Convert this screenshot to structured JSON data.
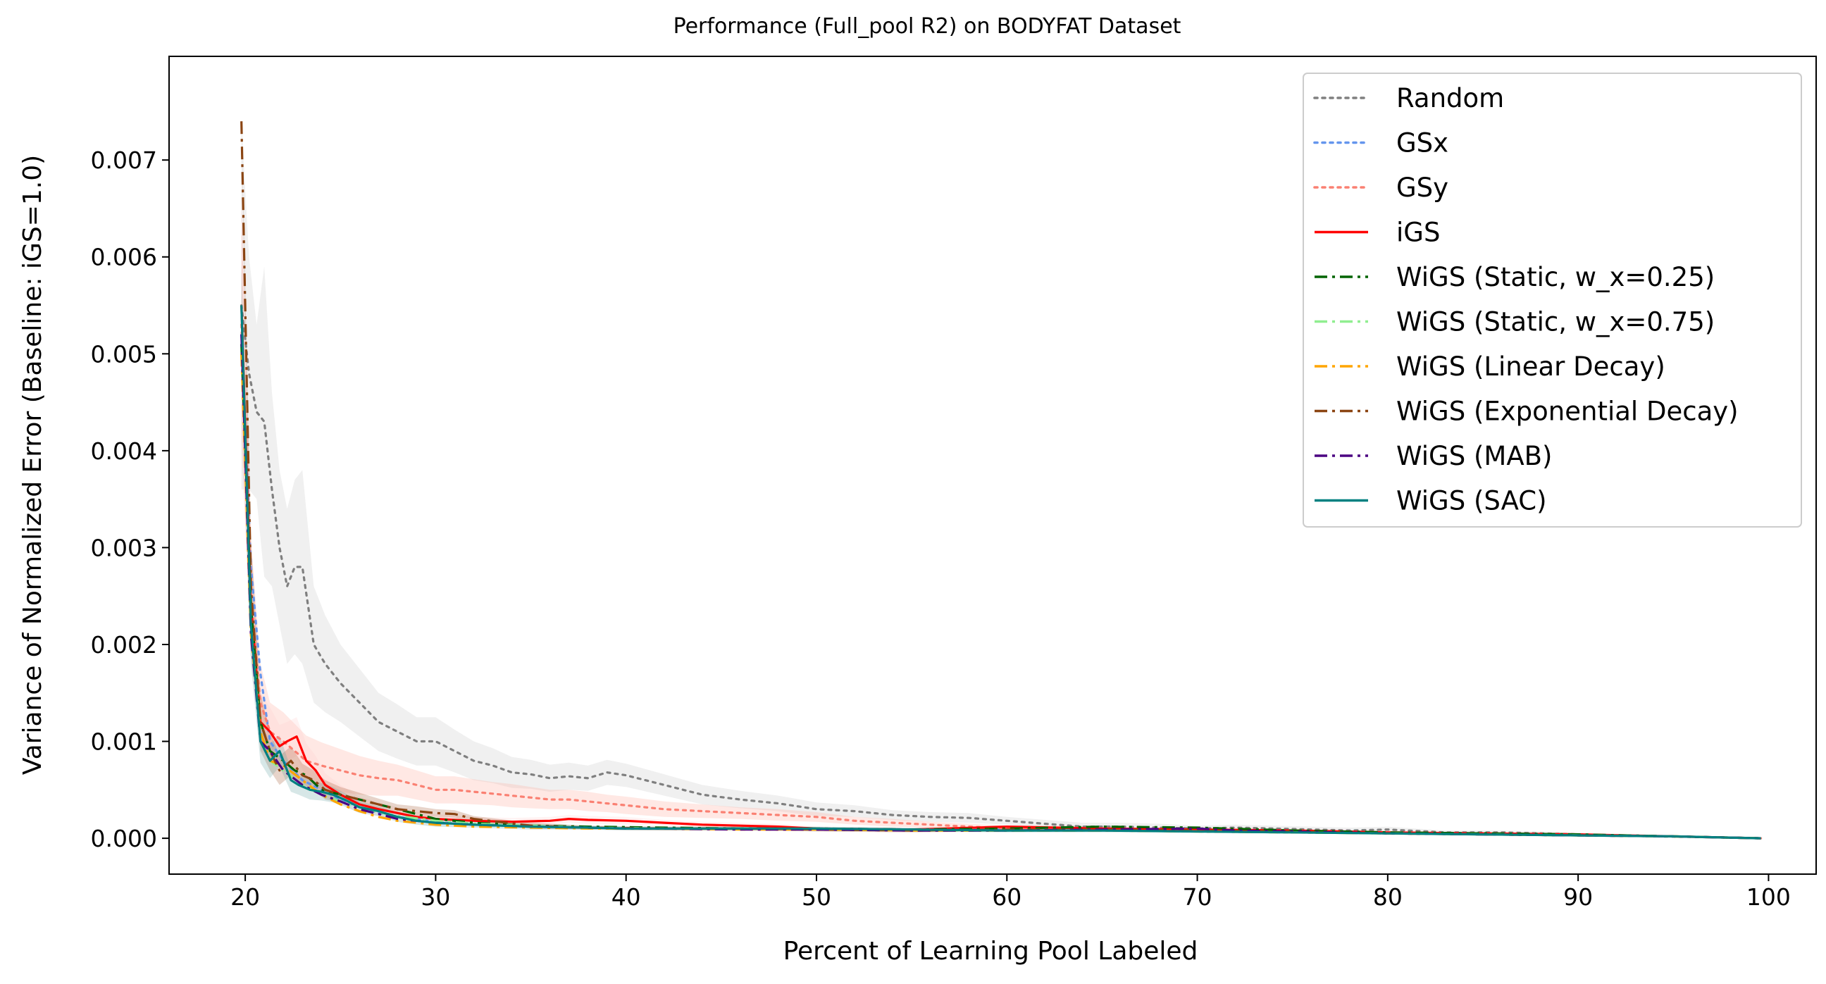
{
  "chart_data": {
    "type": "line",
    "title": "Performance (Full_pool R2) on BODYFAT Dataset",
    "xlabel": "Percent of Learning Pool Labeled",
    "ylabel": "Variance of Normalized Error (Baseline: iGS=1.0)",
    "xlim": [
      16,
      102.5
    ],
    "ylim": [
      -0.00037,
      0.00807
    ],
    "xticks": [
      20,
      30,
      40,
      50,
      60,
      70,
      80,
      90,
      100
    ],
    "xtick_labels": [
      "20",
      "30",
      "40",
      "50",
      "60",
      "70",
      "80",
      "90",
      "100"
    ],
    "yticks": [
      0.0,
      0.001,
      0.002,
      0.003,
      0.004,
      0.005,
      0.006,
      0.007
    ],
    "ytick_labels": [
      "0.000",
      "0.001",
      "0.002",
      "0.003",
      "0.004",
      "0.005",
      "0.006",
      "0.007"
    ],
    "grid": false,
    "legend_position": "top-right",
    "series": [
      {
        "name": "Random",
        "color": "#7f7f7f",
        "style": "dotted",
        "band": true,
        "band_color": "#cccccc",
        "band_opacity": 0.3,
        "x": [
          19.8,
          20.2,
          20.6,
          21.0,
          21.4,
          21.8,
          22.2,
          22.6,
          23.0,
          23.6,
          24.2,
          25.0,
          26.0,
          27.0,
          28.0,
          29.0,
          30.0,
          31.0,
          32.0,
          33.0,
          34.0,
          35.0,
          36.0,
          37.0,
          38.0,
          39.0,
          40.0,
          42.0,
          44.0,
          46.0,
          48.0,
          50.0,
          52.0,
          54.0,
          56.0,
          58.0,
          60.0,
          62.0,
          64.0,
          66.0,
          68.0,
          70.0,
          72.0,
          74.0,
          76.0,
          78.0,
          80.0,
          83.0,
          86.0,
          90.0,
          94.0,
          97.0,
          99.6
        ],
        "y": [
          0.0055,
          0.0048,
          0.0044,
          0.0043,
          0.0036,
          0.003,
          0.0026,
          0.0028,
          0.0028,
          0.002,
          0.0018,
          0.0016,
          0.0014,
          0.0012,
          0.0011,
          0.001,
          0.001,
          0.0009,
          0.0008,
          0.00075,
          0.00068,
          0.00066,
          0.00062,
          0.00064,
          0.00062,
          0.00068,
          0.00065,
          0.00055,
          0.00045,
          0.0004,
          0.00036,
          0.0003,
          0.00028,
          0.00024,
          0.00022,
          0.00021,
          0.00018,
          0.00015,
          0.00012,
          0.00012,
          0.00011,
          0.0001,
          0.00011,
          0.0001,
          9e-05,
          8e-05,
          9e-05,
          6e-05,
          6e-05,
          4e-05,
          2e-05,
          1e-05,
          0.0
        ],
        "spread": [
          0.0019,
          0.0012,
          0.0009,
          0.0016,
          0.001,
          0.0008,
          0.0008,
          0.0009,
          0.001,
          0.0006,
          0.0005,
          0.0004,
          0.00035,
          0.0003,
          0.00028,
          0.00025,
          0.00025,
          0.00022,
          0.0002,
          0.00018,
          0.00016,
          0.00015,
          0.00014,
          0.00014,
          0.00013,
          0.00013,
          0.00012,
          0.00011,
          0.0001,
          9e-05,
          8e-05,
          7e-05,
          6e-05,
          5e-05,
          5e-05,
          5e-05,
          4e-05,
          4e-05,
          4e-05,
          4e-05,
          4e-05,
          3e-05,
          3e-05,
          3e-05,
          3e-05,
          3e-05,
          3e-05,
          2e-05,
          2e-05,
          2e-05,
          1e-05,
          1e-05,
          0.0
        ]
      },
      {
        "name": "GSx",
        "color": "#6495ed",
        "style": "dotted",
        "band": false,
        "x": [
          19.8,
          20.3,
          20.8,
          21.3,
          22.0,
          23.0,
          24.0,
          25.0,
          26.0,
          27.0,
          28.0,
          30.0,
          32.0,
          35.0,
          38.0,
          42.0,
          46.0,
          50.0,
          55.0,
          60.0,
          65.0,
          70.0,
          75.0,
          80.0,
          85.0,
          90.0,
          95.0,
          99.6
        ],
        "y": [
          0.0052,
          0.0028,
          0.0017,
          0.001,
          0.0008,
          0.0006,
          0.0005,
          0.0004,
          0.00032,
          0.00026,
          0.00022,
          0.00017,
          0.00014,
          0.00012,
          0.00011,
          0.0001,
          0.0001,
          0.0001,
          9e-05,
          9e-05,
          8e-05,
          7e-05,
          6e-05,
          5e-05,
          4e-05,
          3e-05,
          2e-05,
          0.0
        ]
      },
      {
        "name": "GSy",
        "color": "#fa8072",
        "style": "dotted",
        "band": true,
        "band_color": "#ffb3a7",
        "band_opacity": 0.3,
        "x": [
          19.8,
          20.3,
          20.8,
          21.3,
          22.0,
          22.6,
          23.2,
          24.0,
          25.0,
          26.0,
          27.0,
          28.0,
          29.0,
          30.0,
          31.0,
          32.0,
          33.0,
          34.0,
          35.0,
          36.0,
          37.0,
          38.0,
          39.0,
          40.0,
          42.0,
          44.0,
          46.0,
          48.0,
          50.0,
          52.0,
          54.0,
          56.0,
          58.0,
          60.0,
          63.0,
          66.0,
          70.0,
          75.0,
          80.0,
          85.0,
          90.0,
          95.0,
          99.6
        ],
        "y": [
          0.0053,
          0.0025,
          0.0014,
          0.0011,
          0.001,
          0.0009,
          0.0008,
          0.00075,
          0.0007,
          0.00065,
          0.00062,
          0.0006,
          0.00055,
          0.0005,
          0.0005,
          0.00048,
          0.00046,
          0.00044,
          0.00042,
          0.0004,
          0.0004,
          0.00038,
          0.00036,
          0.00034,
          0.0003,
          0.00028,
          0.00026,
          0.00024,
          0.00022,
          0.00018,
          0.00016,
          0.00014,
          0.00012,
          0.0001,
          0.0001,
          9e-05,
          8e-05,
          7e-05,
          6e-05,
          4e-05,
          3e-05,
          2e-05,
          0.0
        ],
        "spread": [
          0.0012,
          0.0006,
          0.0004,
          0.0003,
          0.0003,
          0.00028,
          0.00026,
          0.00024,
          0.00022,
          0.0002,
          0.00018,
          0.00016,
          0.00015,
          0.00014,
          0.00014,
          0.00013,
          0.00012,
          0.00012,
          0.00011,
          0.0001,
          0.0001,
          0.0001,
          9e-05,
          9e-05,
          8e-05,
          7e-05,
          6e-05,
          6e-05,
          5e-05,
          4e-05,
          4e-05,
          3e-05,
          3e-05,
          3e-05,
          3e-05,
          2e-05,
          2e-05,
          2e-05,
          2e-05,
          1e-05,
          1e-05,
          1e-05,
          0.0
        ]
      },
      {
        "name": "iGS",
        "color": "#ff0000",
        "style": "solid",
        "band": true,
        "band_color": "#ffcccc",
        "band_opacity": 0.25,
        "x": [
          19.8,
          20.3,
          20.8,
          21.3,
          21.8,
          22.2,
          22.7,
          23.2,
          23.7,
          24.2,
          25.0,
          26.0,
          27.0,
          28.0,
          29.0,
          30.0,
          32.0,
          34.0,
          36.0,
          37.0,
          38.0,
          40.0,
          42.0,
          44.0,
          46.0,
          48.0,
          50.0,
          55.0,
          60.0,
          65.0,
          70.0,
          75.0,
          80.0,
          85.0,
          90.0,
          95.0,
          99.6
        ],
        "y": [
          0.0055,
          0.0024,
          0.0012,
          0.0011,
          0.00095,
          0.001,
          0.00105,
          0.0008,
          0.0007,
          0.00055,
          0.00045,
          0.00035,
          0.0003,
          0.00026,
          0.00022,
          0.0002,
          0.00018,
          0.00017,
          0.00018,
          0.0002,
          0.00019,
          0.00018,
          0.00016,
          0.00014,
          0.00013,
          0.00012,
          0.0001,
          9e-05,
          0.00012,
          0.0001,
          9e-05,
          8e-05,
          6e-05,
          5e-05,
          4e-05,
          2e-05,
          0.0
        ],
        "spread": [
          0.0012,
          0.0005,
          0.0003,
          0.00025,
          0.00022,
          0.0002,
          0.0002,
          0.00018,
          0.00015,
          0.00012,
          0.0001,
          8e-05,
          7e-05,
          6e-05,
          5e-05,
          5e-05,
          4e-05,
          4e-05,
          4e-05,
          4e-05,
          4e-05,
          4e-05,
          3e-05,
          3e-05,
          3e-05,
          3e-05,
          2e-05,
          2e-05,
          2e-05,
          2e-05,
          2e-05,
          2e-05,
          1e-05,
          1e-05,
          1e-05,
          1e-05,
          0.0
        ]
      },
      {
        "name": "WiGS (Static, w_x=0.25)",
        "color": "#006400",
        "style": "dashdot",
        "band": false,
        "x": [
          19.8,
          20.3,
          20.8,
          21.3,
          22.0,
          22.6,
          23.2,
          24.0,
          25.0,
          26.0,
          27.0,
          28.0,
          29.0,
          30.0,
          32.0,
          35.0,
          38.0,
          42.0,
          46.0,
          50.0,
          55.0,
          60.0,
          65.0,
          70.0,
          75.0,
          80.0,
          85.0,
          90.0,
          95.0,
          99.6
        ],
        "y": [
          0.0051,
          0.0024,
          0.0012,
          0.0009,
          0.0008,
          0.0007,
          0.00065,
          0.0005,
          0.00045,
          0.0004,
          0.00035,
          0.0003,
          0.00025,
          0.0002,
          0.00016,
          0.00013,
          0.00012,
          0.00011,
          0.0001,
          0.0001,
          9e-05,
          0.0001,
          0.00012,
          0.00011,
          8e-05,
          6e-05,
          5e-05,
          4e-05,
          2e-05,
          0.0
        ]
      },
      {
        "name": "WiGS (Static, w_x=0.75)",
        "color": "#90ee90",
        "style": "dashdot",
        "band": false,
        "x": [
          19.8,
          20.3,
          20.8,
          21.3,
          22.0,
          23.0,
          24.0,
          25.0,
          26.0,
          27.0,
          28.0,
          30.0,
          32.0,
          35.0,
          38.0,
          42.0,
          46.0,
          50.0,
          55.0,
          60.0,
          65.0,
          70.0,
          75.0,
          80.0,
          85.0,
          90.0,
          95.0,
          99.6
        ],
        "y": [
          0.005,
          0.0022,
          0.0011,
          0.0008,
          0.0007,
          0.00055,
          0.00045,
          0.00038,
          0.00032,
          0.00027,
          0.00023,
          0.00018,
          0.00015,
          0.00013,
          0.00011,
          0.0001,
          0.0001,
          9e-05,
          8e-05,
          8e-05,
          8e-05,
          7e-05,
          6e-05,
          5e-05,
          4e-05,
          3e-05,
          2e-05,
          0.0
        ]
      },
      {
        "name": "WiGS (Linear Decay)",
        "color": "#ffa500",
        "style": "dashdot",
        "band": false,
        "x": [
          19.8,
          20.3,
          20.8,
          21.3,
          22.0,
          23.0,
          24.0,
          25.0,
          26.0,
          27.0,
          28.0,
          30.0,
          32.0,
          35.0,
          38.0,
          42.0,
          46.0,
          50.0,
          55.0,
          60.0,
          65.0,
          70.0,
          75.0,
          80.0,
          85.0,
          90.0,
          95.0,
          99.6
        ],
        "y": [
          0.005,
          0.0021,
          0.0011,
          0.0008,
          0.00075,
          0.0006,
          0.00045,
          0.00035,
          0.00028,
          0.00022,
          0.00018,
          0.00014,
          0.00012,
          0.00011,
          0.0001,
          0.0001,
          9e-05,
          9e-05,
          8e-05,
          8e-05,
          8e-05,
          7e-05,
          6e-05,
          5e-05,
          4e-05,
          3e-05,
          2e-05,
          0.0
        ]
      },
      {
        "name": "WiGS (Exponential Decay)",
        "color": "#8b4513",
        "style": "dashdot",
        "band": true,
        "band_color": "#a0522d",
        "band_opacity": 0.25,
        "x": [
          19.8,
          20.3,
          20.8,
          21.3,
          21.8,
          22.4,
          23.0,
          23.6,
          24.2,
          25.0,
          26.0,
          27.0,
          28.0,
          29.0,
          30.0,
          31.0,
          32.0,
          35.0,
          38.0,
          42.0,
          46.0,
          50.0,
          55.0,
          60.0,
          65.0,
          70.0,
          75.0,
          80.0,
          85.0,
          90.0,
          95.0,
          99.6
        ],
        "y": [
          0.0074,
          0.0026,
          0.0012,
          0.0009,
          0.0007,
          0.0008,
          0.00065,
          0.0006,
          0.0005,
          0.00045,
          0.0004,
          0.00035,
          0.0003,
          0.00028,
          0.00026,
          0.00025,
          0.0002,
          0.00013,
          0.00011,
          0.0001,
          0.0001,
          9e-05,
          8e-05,
          9e-05,
          9e-05,
          8e-05,
          7e-05,
          5e-05,
          4e-05,
          3e-05,
          2e-05,
          0.0
        ],
        "spread": [
          0.0,
          0.0005,
          0.0003,
          0.0002,
          0.00015,
          0.00015,
          0.00012,
          0.0001,
          0.0001,
          8e-05,
          7e-05,
          6e-05,
          5e-05,
          5e-05,
          4e-05,
          4e-05,
          3e-05,
          3e-05,
          2e-05,
          2e-05,
          2e-05,
          2e-05,
          2e-05,
          2e-05,
          2e-05,
          2e-05,
          1e-05,
          1e-05,
          1e-05,
          1e-05,
          1e-05,
          0.0
        ]
      },
      {
        "name": "WiGS (MAB)",
        "color": "#4b0082",
        "style": "dashdot",
        "band": false,
        "x": [
          19.8,
          20.3,
          20.8,
          21.3,
          22.0,
          23.0,
          24.0,
          25.0,
          26.0,
          27.0,
          28.0,
          30.0,
          32.0,
          35.0,
          38.0,
          40.0,
          42.0,
          46.0,
          50.0,
          55.0,
          60.0,
          65.0,
          70.0,
          72.0,
          75.0,
          80.0,
          85.0,
          90.0,
          95.0,
          99.6
        ],
        "y": [
          0.0052,
          0.0021,
          0.001,
          0.0009,
          0.0007,
          0.00055,
          0.00045,
          0.00038,
          0.0003,
          0.00025,
          0.0002,
          0.00016,
          0.00014,
          0.00012,
          0.00011,
          0.0001,
          0.0001,
          9e-05,
          9e-05,
          8e-05,
          8e-05,
          9e-05,
          0.0001,
          8e-05,
          7e-05,
          5e-05,
          4e-05,
          3e-05,
          2e-05,
          0.0
        ]
      },
      {
        "name": "WiGS (SAC)",
        "color": "#008080",
        "style": "solid",
        "band": true,
        "band_color": "#5f9ea0",
        "band_opacity": 0.25,
        "x": [
          19.8,
          20.3,
          20.8,
          21.3,
          21.8,
          22.4,
          22.8,
          23.4,
          24.0,
          24.6,
          25.2,
          26.0,
          27.0,
          28.0,
          29.0,
          30.0,
          32.0,
          35.0,
          38.0,
          40.0,
          42.0,
          46.0,
          50.0,
          55.0,
          60.0,
          65.0,
          70.0,
          75.0,
          80.0,
          85.0,
          90.0,
          95.0,
          99.6
        ],
        "y": [
          0.0055,
          0.0022,
          0.001,
          0.0008,
          0.0009,
          0.0006,
          0.00055,
          0.0005,
          0.00048,
          0.00045,
          0.0004,
          0.00032,
          0.00028,
          0.00022,
          0.00018,
          0.00016,
          0.00014,
          0.00012,
          0.00011,
          0.0001,
          0.0001,
          0.0001,
          0.0001,
          9e-05,
          8e-05,
          8e-05,
          7e-05,
          6e-05,
          5e-05,
          4e-05,
          3e-05,
          2e-05,
          0.0
        ],
        "spread": [
          0.0004,
          0.0004,
          0.00022,
          0.00018,
          0.00016,
          0.00012,
          0.0001,
          0.0001,
          9e-05,
          8e-05,
          7e-05,
          6e-05,
          5e-05,
          5e-05,
          4e-05,
          4e-05,
          3e-05,
          3e-05,
          2e-05,
          2e-05,
          2e-05,
          2e-05,
          2e-05,
          2e-05,
          2e-05,
          2e-05,
          1e-05,
          1e-05,
          1e-05,
          1e-05,
          1e-05,
          1e-05,
          0.0
        ]
      }
    ]
  }
}
